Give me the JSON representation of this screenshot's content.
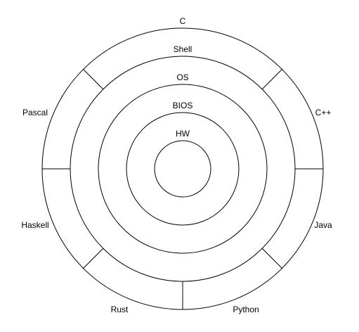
{
  "layers": {
    "hw": "HW",
    "bios": "BIOS",
    "os": "OS",
    "shell": "Shell"
  },
  "languages": {
    "c": "C",
    "cpp": "C++",
    "java": "Java",
    "python": "Python",
    "rust": "Rust",
    "haskell": "Haskell",
    "pascal": "Pascal"
  },
  "colors": {
    "stroke": "#000000",
    "background": "#ffffff"
  }
}
